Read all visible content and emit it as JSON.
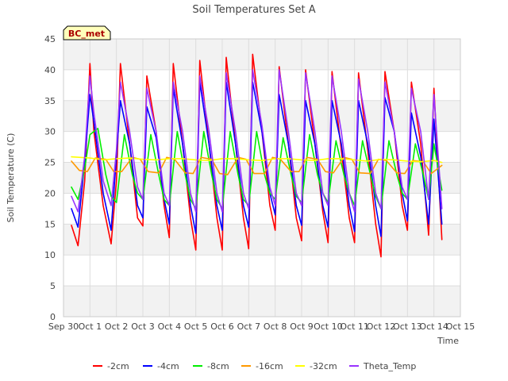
{
  "chart_data": {
    "type": "line",
    "title": "Soil Temperatures Set A",
    "xlabel": "Time",
    "ylabel": "Soil Temperature (C)",
    "annotation": "BC_met",
    "ylim": [
      0,
      45
    ],
    "yticks": [
      0,
      5,
      10,
      15,
      20,
      25,
      30,
      35,
      40,
      45
    ],
    "xlim": [
      0,
      15
    ],
    "xticks": [
      {
        "value": 0,
        "label": "Sep 30"
      },
      {
        "value": 1,
        "label": "Oct 1"
      },
      {
        "value": 2,
        "label": "Oct 2"
      },
      {
        "value": 3,
        "label": "Oct 3"
      },
      {
        "value": 4,
        "label": "Oct 4"
      },
      {
        "value": 5,
        "label": "Oct 5"
      },
      {
        "value": 6,
        "label": "Oct 6"
      },
      {
        "value": 7,
        "label": "Oct 7"
      },
      {
        "value": 8,
        "label": "Oct 8"
      },
      {
        "value": 9,
        "label": "Oct 9"
      },
      {
        "value": 10,
        "label": "Oct 10"
      },
      {
        "value": 11,
        "label": "Oct 11"
      },
      {
        "value": 12,
        "label": "Oct 12"
      },
      {
        "value": 13,
        "label": "Oct 13"
      },
      {
        "value": 14,
        "label": "Oct 14"
      },
      {
        "value": 15,
        "label": "Oct 15"
      }
    ],
    "grid": true,
    "legend_position": "bottom",
    "series": [
      {
        "name": "-2cm",
        "color": "#ff0000",
        "x": [
          0.3,
          0.55,
          0.8,
          1.0,
          1.15,
          1.5,
          1.8,
          2.0,
          2.15,
          2.5,
          2.8,
          3.0,
          3.15,
          3.5,
          3.8,
          4.0,
          4.15,
          4.5,
          4.8,
          5.0,
          5.15,
          5.5,
          5.8,
          6.0,
          6.15,
          6.5,
          6.8,
          7.0,
          7.15,
          7.5,
          7.8,
          8.0,
          8.15,
          8.5,
          8.8,
          9.0,
          9.15,
          9.5,
          9.8,
          10.0,
          10.15,
          10.5,
          10.8,
          11.0,
          11.15,
          11.5,
          11.8,
          12.0,
          12.15,
          12.5,
          12.8,
          13.0,
          13.15,
          13.5,
          13.8,
          14.0,
          14.3
        ],
        "y": [
          14.8,
          11.5,
          22,
          41,
          30,
          18,
          11.8,
          22,
          41,
          28,
          16,
          14.7,
          39,
          30,
          18,
          12.8,
          41,
          28,
          16,
          10.8,
          41.5,
          28,
          16,
          10.8,
          42,
          28,
          16,
          11,
          42.5,
          30,
          18,
          14,
          40.5,
          28,
          16,
          12.3,
          40,
          28,
          17,
          12,
          39.7,
          27,
          16,
          12,
          39.5,
          27,
          15,
          9.7,
          39.7,
          30,
          18,
          14,
          38,
          28,
          13.2,
          37,
          12.5
        ]
      },
      {
        "name": "-4cm",
        "color": "#0000ff",
        "x": [
          0.3,
          0.55,
          0.8,
          1.0,
          1.15,
          1.5,
          1.8,
          2.0,
          2.15,
          2.5,
          2.8,
          3.0,
          3.15,
          3.5,
          3.8,
          4.0,
          4.15,
          4.5,
          4.8,
          5.0,
          5.15,
          5.5,
          5.8,
          6.0,
          6.15,
          6.5,
          6.8,
          7.0,
          7.15,
          7.5,
          7.8,
          8.0,
          8.15,
          8.5,
          8.8,
          9.0,
          9.15,
          9.5,
          9.8,
          10.0,
          10.15,
          10.5,
          10.8,
          11.0,
          11.15,
          11.5,
          11.8,
          12.0,
          12.15,
          12.5,
          12.8,
          13.0,
          13.15,
          13.5,
          13.8,
          14.0,
          14.3
        ],
        "y": [
          17.5,
          14.5,
          25,
          36,
          31.5,
          20,
          14,
          26,
          35,
          28,
          18,
          16,
          34,
          29,
          19,
          15,
          37,
          28,
          18,
          13.5,
          38,
          28,
          18,
          14,
          38,
          28,
          18,
          14.5,
          38,
          30,
          20,
          16.5,
          36,
          28,
          18,
          14.8,
          35,
          28,
          18,
          14.5,
          35,
          28,
          18,
          13.8,
          35,
          28,
          18,
          13,
          35.5,
          30,
          20,
          15.5,
          33,
          26,
          15,
          32,
          15
        ]
      },
      {
        "name": "-8cm",
        "color": "#00ee00",
        "x": [
          0.3,
          0.55,
          0.8,
          1.0,
          1.3,
          1.6,
          1.8,
          2.0,
          2.3,
          2.6,
          2.8,
          3.0,
          3.3,
          3.6,
          3.8,
          4.0,
          4.3,
          4.6,
          4.8,
          5.0,
          5.3,
          5.6,
          5.8,
          6.0,
          6.3,
          6.6,
          6.8,
          7.0,
          7.3,
          7.6,
          7.8,
          8.0,
          8.3,
          8.6,
          8.8,
          9.0,
          9.3,
          9.6,
          9.8,
          10.0,
          10.3,
          10.6,
          10.8,
          11.0,
          11.3,
          11.6,
          11.8,
          12.0,
          12.3,
          12.6,
          12.8,
          13.0,
          13.3,
          13.6,
          13.8,
          14.0,
          14.3
        ],
        "y": [
          21,
          19,
          24,
          29.5,
          30.5,
          23,
          19.5,
          18.5,
          29.5,
          23,
          20,
          19,
          29.5,
          23,
          19,
          18,
          30,
          23,
          19,
          17.5,
          30,
          23,
          19,
          17.5,
          30,
          23,
          19,
          18,
          30,
          23,
          20,
          19,
          29,
          23,
          19.5,
          18.5,
          29.5,
          23,
          20,
          18.5,
          28.5,
          23,
          20,
          18,
          28.5,
          23,
          19.5,
          17.5,
          28.5,
          23,
          20,
          19,
          28,
          23,
          19,
          28,
          20.5
        ]
      },
      {
        "name": "-16cm",
        "color": "#ff9900",
        "x": [
          0.3,
          0.6,
          0.9,
          1.2,
          1.6,
          1.9,
          2.2,
          2.6,
          2.9,
          3.2,
          3.6,
          3.9,
          4.2,
          4.6,
          4.9,
          5.2,
          5.6,
          5.9,
          6.2,
          6.6,
          6.9,
          7.2,
          7.6,
          7.9,
          8.2,
          8.6,
          8.9,
          9.2,
          9.6,
          9.9,
          10.2,
          10.6,
          10.9,
          11.2,
          11.6,
          11.9,
          12.2,
          12.6,
          12.9,
          13.2,
          13.6,
          13.9,
          14.3
        ],
        "y": [
          25.2,
          23.7,
          23.5,
          25.7,
          25.5,
          23.5,
          23.5,
          25.8,
          25.5,
          23.5,
          23.3,
          25.8,
          25.5,
          23.3,
          23.2,
          25.8,
          25.5,
          23.2,
          23,
          25.8,
          25.5,
          23.2,
          23.2,
          25.8,
          25.5,
          23.5,
          23.5,
          25.8,
          25.5,
          23.5,
          23.3,
          25.8,
          25.5,
          23.3,
          23.2,
          25.5,
          25.3,
          23.3,
          23.2,
          25.3,
          25.1,
          23.2,
          24.5
        ]
      },
      {
        "name": "-32cm",
        "color": "#ffff00",
        "x": [
          0.3,
          1.0,
          1.5,
          2.0,
          2.5,
          3.0,
          3.5,
          4.0,
          4.5,
          5.0,
          5.5,
          6.0,
          6.5,
          7.0,
          7.5,
          8.0,
          8.5,
          9.0,
          9.5,
          10.0,
          10.5,
          11.0,
          11.5,
          12.0,
          12.5,
          13.0,
          13.5,
          14.0,
          14.3
        ],
        "y": [
          25.9,
          25.7,
          25.4,
          25.6,
          25.7,
          25.5,
          25.4,
          25.6,
          25.6,
          25.4,
          25.3,
          25.6,
          25.6,
          25.4,
          25.3,
          25.6,
          25.6,
          25.4,
          25.3,
          25.6,
          25.6,
          25.4,
          25.2,
          25.5,
          25.4,
          25.2,
          25.1,
          25.3,
          25
        ]
      },
      {
        "name": "Theta_Temp",
        "color": "#9933ff",
        "x": [
          0.3,
          0.55,
          0.8,
          1.0,
          1.15,
          1.5,
          1.8,
          2.0,
          2.15,
          2.5,
          2.8,
          3.0,
          3.15,
          3.5,
          3.8,
          4.0,
          4.15,
          4.5,
          4.8,
          5.0,
          5.15,
          5.5,
          5.8,
          6.0,
          6.15,
          6.5,
          6.8,
          7.0,
          7.15,
          7.5,
          7.8,
          8.0,
          8.15,
          8.5,
          8.8,
          9.0,
          9.15,
          9.5,
          9.8,
          10.0,
          10.15,
          10.5,
          10.8,
          11.0,
          11.15,
          11.5,
          11.8,
          12.0,
          12.15,
          12.5,
          12.8,
          13.0,
          13.15,
          13.5,
          13.8,
          14.0,
          14.3
        ],
        "y": [
          19.5,
          17,
          26,
          39,
          33,
          22,
          18,
          27,
          38,
          30,
          21,
          19,
          37,
          30,
          20,
          18,
          38,
          30,
          20,
          17,
          39,
          30,
          20,
          17,
          39.5,
          30,
          20,
          17.5,
          40,
          31,
          21,
          18,
          40,
          30,
          20,
          18,
          39.5,
          30,
          20,
          18,
          39,
          30,
          20,
          17,
          38.5,
          30,
          20,
          17.5,
          38,
          30,
          21,
          19,
          37,
          30,
          19,
          36,
          17.5
        ]
      }
    ]
  }
}
